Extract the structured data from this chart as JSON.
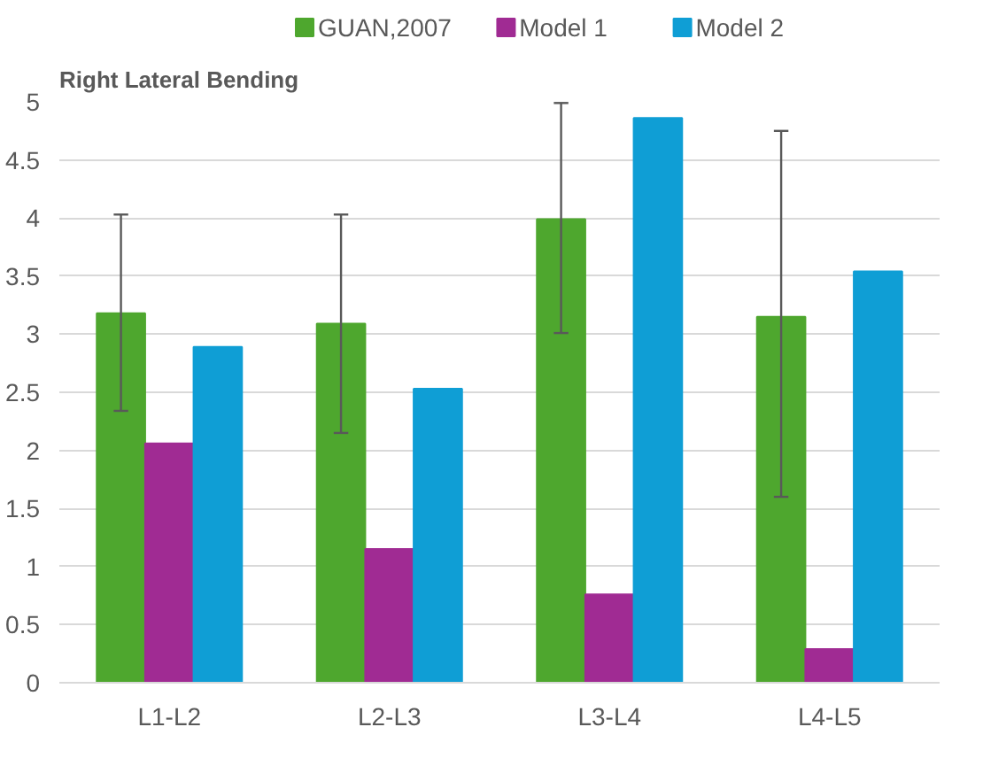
{
  "chart_data": {
    "type": "bar",
    "title": "Right Lateral Bending",
    "categories": [
      "L1-L2",
      "L2-L3",
      "L3-L4",
      "L4-L5"
    ],
    "series": [
      {
        "name": "GUAN,2007",
        "color": "#4ea72e",
        "values": [
          3.18,
          3.09,
          3.99,
          3.15
        ],
        "errors": [
          [
            2.34,
            4.03
          ],
          [
            2.15,
            4.03
          ],
          [
            3.01,
            4.99
          ],
          [
            1.6,
            4.75
          ]
        ]
      },
      {
        "name": "Model 1",
        "color": "#a02b93",
        "values": [
          2.06,
          1.15,
          0.76,
          0.29
        ]
      },
      {
        "name": "Model 2",
        "color": "#0f9ed5",
        "values": [
          2.89,
          2.53,
          4.86,
          3.54
        ]
      }
    ],
    "ylim": [
      0,
      5
    ],
    "yticks": [
      0,
      {
        "value": 0.5,
        "label": "0.5"
      },
      1,
      {
        "value": 1.5,
        "label": "1.5"
      },
      2,
      {
        "value": 2.5,
        "label": "2.5"
      },
      3,
      {
        "value": 3.5,
        "label": "3.5"
      },
      4,
      {
        "value": 4.5,
        "label": "4.5"
      },
      5
    ],
    "grid": "y",
    "legend": "top"
  }
}
